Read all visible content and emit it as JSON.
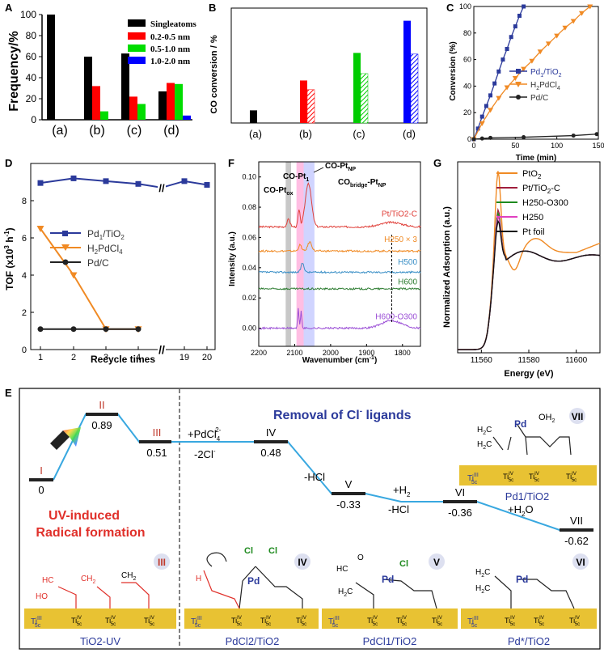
{
  "chart_data": [
    {
      "id": "A",
      "type": "bar",
      "panel_label": "A",
      "ylabel": "Frequency/%",
      "ylim": [
        0,
        100
      ],
      "yticks": [
        0,
        20,
        40,
        60,
        80,
        100
      ],
      "categories": [
        "(a)",
        "(b)",
        "(c)",
        "(d)"
      ],
      "series": [
        {
          "name": "Singleatoms",
          "color": "#000000",
          "values": [
            100,
            60,
            63,
            27
          ]
        },
        {
          "name": "0.2-0.5 nm",
          "color": "#ff0000",
          "values": [
            0,
            32,
            22,
            35
          ]
        },
        {
          "name": "0.5-1.0 nm",
          "color": "#00dd00",
          "values": [
            0,
            8,
            15,
            34
          ]
        },
        {
          "name": "1.0-2.0 nm",
          "color": "#0000ff",
          "values": [
            0,
            0,
            0,
            4
          ]
        }
      ]
    },
    {
      "id": "B",
      "type": "bar",
      "panel_label": "B",
      "ylabel": "CO conversion / %",
      "ylim": [
        0,
        100
      ],
      "categories": [
        "(a)",
        "(b)",
        "(c)",
        "(d)"
      ],
      "colors": [
        "#000000",
        "#ff0000",
        "#00cc00",
        "#0000ff"
      ],
      "series": [
        {
          "name": "solid",
          "values": [
            11,
            37,
            61,
            89
          ]
        },
        {
          "name": "hatched",
          "values": [
            null,
            29,
            43,
            60
          ]
        }
      ]
    },
    {
      "id": "C",
      "type": "line",
      "panel_label": "C",
      "xlabel": "Time (min)",
      "ylabel": "Conversion (%)",
      "xlim": [
        0,
        150
      ],
      "ylim": [
        0,
        100
      ],
      "xticks": [
        0,
        50,
        100,
        150
      ],
      "yticks": [
        0,
        20,
        40,
        60,
        80,
        100
      ],
      "series": [
        {
          "name": "Pd1/TiO2",
          "name_main": "Pd",
          "name_sub1": "1",
          "name_mid": "/TiO",
          "name_sub2": "2",
          "color": "#2b3a9b",
          "marker": "square",
          "x": [
            0,
            5,
            10,
            15,
            20,
            25,
            30,
            35,
            40,
            45,
            50,
            55,
            60
          ],
          "y": [
            0,
            8,
            17,
            25,
            33,
            42,
            51,
            60,
            68,
            77,
            85,
            93,
            100
          ]
        },
        {
          "name": "H2PdCl4",
          "name_main": "H",
          "name_sub1": "2",
          "name_mid": "PdCl",
          "name_sub2": "4",
          "color": "#f08a24",
          "marker": "triangle",
          "x": [
            0,
            10,
            20,
            30,
            40,
            50,
            60,
            70,
            80,
            90,
            100,
            110,
            120,
            130,
            140
          ],
          "y": [
            0,
            12,
            22,
            31,
            39,
            46,
            53,
            59,
            66,
            72,
            78,
            84,
            89,
            95,
            100
          ]
        },
        {
          "name": "Pd/C",
          "color": "#222222",
          "marker": "circle",
          "x": [
            0,
            10,
            20,
            60,
            120,
            148
          ],
          "y": [
            0,
            0.5,
            1,
            1.5,
            2.7,
            3.8
          ]
        }
      ]
    },
    {
      "id": "D",
      "type": "line",
      "panel_label": "D",
      "xlabel": "Recycle times",
      "ylabel_pre": "TOF (x10",
      "ylabel_sup": "3",
      "ylabel_mid": " h",
      "ylabel_sup2": "-1",
      "ylabel_post": ")",
      "ylim": [
        0,
        10
      ],
      "yticks": [
        0,
        2,
        4,
        6,
        8
      ],
      "xticks": [
        "1",
        "2",
        "3",
        "4",
        "19",
        "20"
      ],
      "axis_break_mark": "//",
      "series": [
        {
          "name": "Pd1/TiO2",
          "name_main": "Pd",
          "name_sub1": "1",
          "name_mid": "/TiO",
          "name_sub2": "2",
          "color": "#2b3a9b",
          "marker": "square",
          "x": [
            "1",
            "2",
            "3",
            "4",
            "19",
            "20"
          ],
          "y": [
            8.95,
            9.2,
            9.05,
            8.9,
            9.05,
            8.85
          ],
          "break_value": 8.7
        },
        {
          "name": "H2PdCl4",
          "name_main": "H",
          "name_sub1": "2",
          "name_mid": "PdCl",
          "name_sub2": "4",
          "color": "#f08a24",
          "marker": "triangle",
          "x": [
            "1",
            "2",
            "3",
            "4"
          ],
          "y": [
            6.5,
            4.0,
            1.1,
            1.1
          ]
        },
        {
          "name": "Pd/C",
          "color": "#222222",
          "marker": "circle",
          "x": [
            "1",
            "2",
            "3",
            "4"
          ],
          "y": [
            1.1,
            1.1,
            1.1,
            1.1
          ]
        }
      ]
    },
    {
      "id": "F",
      "type": "line",
      "panel_label": "F",
      "xlabel_pre": "Wavenumber (cm",
      "xlabel_sup": "-1",
      "xlabel_post": ")",
      "ylabel": "Intensity (a.u.)",
      "xlim": [
        2200,
        1750
      ],
      "ylim": [
        -0.012,
        0.11
      ],
      "xticks": [
        2200,
        2100,
        2000,
        1900,
        1800
      ],
      "yticks": [
        0.0,
        0.02,
        0.04,
        0.06,
        0.08,
        0.1
      ],
      "ytick_labels": [
        "0.00",
        "0.02",
        "0.04",
        "0.06",
        "0.08",
        "0.10"
      ],
      "bands": [
        {
          "from": 2125,
          "to": 2110,
          "color": "#9a9a9a"
        },
        {
          "from": 2095,
          "to": 2075,
          "color": "#ff88cc"
        },
        {
          "from": 2075,
          "to": 2045,
          "color": "#aab0ff"
        }
      ],
      "annotations": {
        "co_pt_ox_main": "CO-Pt",
        "co_pt_ox_sub": "ox",
        "co_pt1_main": "CO-Pt",
        "co_pt1_sub": "1",
        "co_ptnp_main": "CO-Pt",
        "co_ptnp_sub": "NP",
        "co_bridge_main": "CO",
        "co_bridge_sub1": "bridge",
        "co_bridge_mid": "-Pt",
        "co_bridge_sub2": "NP"
      },
      "dashed_marker_x": 1830,
      "series": [
        {
          "name": "Pt/TiO2-C",
          "color": "#e0403a",
          "label_color": "#e0403a",
          "baseline": 0.067,
          "label_y": 0.074,
          "peaks": [
            [
              2117,
              0.005,
              6
            ],
            [
              2088,
              0.011,
              4
            ],
            [
              2062,
              0.029,
              12
            ],
            [
              1830,
              0.003,
              40
            ]
          ]
        },
        {
          "name": "H250 × 3",
          "color": "#f08a24",
          "label_color": "#f08a24",
          "baseline": 0.051,
          "label_y": 0.057,
          "peaks": [
            [
              2085,
              0.004,
              6
            ],
            [
              2058,
              0.006,
              8
            ]
          ]
        },
        {
          "name": "H500",
          "color": "#3a8fc6",
          "label_color": "#3a8fc6",
          "baseline": 0.037,
          "label_y": 0.042,
          "peaks": [
            [
              2078,
              0.006,
              6
            ]
          ]
        },
        {
          "name": "H600",
          "color": "#2e7d32",
          "label_color": "#2e7d32",
          "baseline": 0.026,
          "label_y": 0.029,
          "peaks": []
        },
        {
          "name": "H600-O300",
          "color": "#9b4fd6",
          "label_color": "#9b4fd6",
          "baseline": 0.0,
          "label_y": 0.006,
          "peaks": [
            [
              2090,
              0.013,
              2.5
            ],
            [
              2082,
              0.012,
              2.5
            ],
            [
              1830,
              0.005,
              40
            ]
          ]
        }
      ]
    },
    {
      "id": "G",
      "type": "line",
      "panel_label": "G",
      "xlabel": "Energy (eV)",
      "ylabel": "Normalized Adsorption (a.u.)",
      "xlim": [
        11550,
        11610
      ],
      "xticks": [
        11560,
        11580,
        11600
      ],
      "series": [
        {
          "name": "PtO2",
          "name_main": "PtO",
          "name_sub": "2",
          "color": "#f08a24",
          "peak": 1.0
        },
        {
          "name": "Pt/TiO2-C",
          "name_main": "Pt/TiO",
          "name_sub": "2",
          "name_post": "-C",
          "color": "#a01e3c",
          "peak": 0.6
        },
        {
          "name": "H250-O300",
          "color": "#1e8a1e",
          "peak": 0.56
        },
        {
          "name": "H250",
          "color": "#e040c0",
          "peak": 0.52
        },
        {
          "name": "Pt foil",
          "color": "#111111",
          "peak": 0.47
        }
      ]
    },
    {
      "id": "E",
      "type": "diagram",
      "panel_label": "E",
      "levels": [
        {
          "label": "I",
          "value": "0"
        },
        {
          "label": "II",
          "value": "0.89"
        },
        {
          "label": "III",
          "value": "0.51"
        },
        {
          "label": "IV",
          "value": "0.48"
        },
        {
          "label": "V",
          "value": "-0.33"
        },
        {
          "label": "VI",
          "value": "-0.36"
        },
        {
          "label": "VII",
          "value": "-0.62"
        }
      ]
    }
  ],
  "panel_e": {
    "title_main": "Removal of Cl",
    "title_sup": "-",
    "title_post": " ligands",
    "step1_main": "+PdCl",
    "step1_sub": "4",
    "step1_sup": "2-",
    "step2_main": "-2Cl",
    "step2_sup": "-",
    "step3": "-HCl",
    "step4a_main": "+H",
    "step4a_sub": "2",
    "step4b": "-HCl",
    "step5_main": "+H",
    "step5_sub": "2",
    "step5_post": "O",
    "uv_line1": "UV-induced",
    "uv_line2": "Radical formation",
    "cap_tio2uv": "TiO2-UV",
    "cap_pdcl2": "PdCl2/TiO2",
    "cap_pdcl1": "PdCl1/TiO2",
    "cap_pdstar": "Pd*/TiO2",
    "cap_pd1": "Pd1/TiO2",
    "ti_iii": "Ti",
    "ti_iv": "Ti",
    "sub_5c": "5c",
    "sup_iii": "III",
    "sup_iv": "IV",
    "atom_pd": "Pd",
    "atom_cl": "Cl",
    "atom_o": "O",
    "atom_h": "H",
    "atom_oh2": "OH",
    "lbl_h2c": "H",
    "lbl_c": "C",
    "lbl_ho": "HO",
    "lbl_hc": "HC",
    "lbl_ch2": "CH",
    "sub_2": "2",
    "badge_iii": "III",
    "badge_iv": "IV",
    "badge_v": "V",
    "badge_vi": "VI",
    "badge_vii": "VII"
  }
}
